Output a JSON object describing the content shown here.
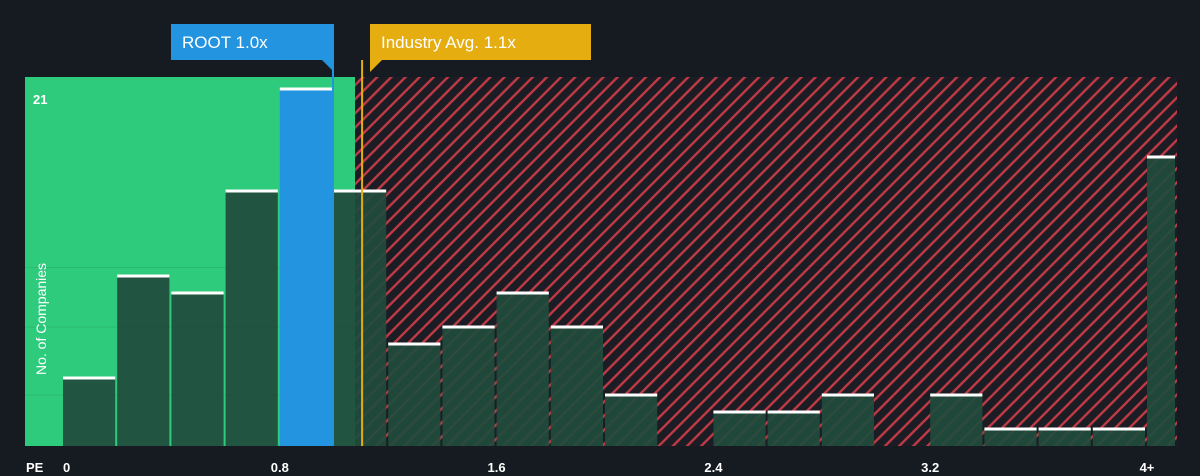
{
  "chart_data": {
    "type": "bar",
    "xlabel": "PE",
    "ylabel": "No. of Companies",
    "x_ticks": [
      "0",
      "0.8",
      "1.6",
      "2.4",
      "3.2",
      "4+"
    ],
    "y_ticks": [
      "21"
    ],
    "bin_width": 0.2,
    "bins": [
      0,
      0.2,
      0.4,
      0.6,
      0.8,
      1.0,
      1.2,
      1.4,
      1.6,
      1.8,
      2.0,
      2.2,
      2.4,
      2.6,
      2.8,
      3.0,
      3.2,
      3.4,
      3.6,
      3.8,
      4.0
    ],
    "values": [
      4,
      10,
      9,
      15,
      21,
      15,
      6,
      7,
      9,
      7,
      3,
      0,
      2,
      2,
      3,
      0,
      3,
      1,
      1,
      1,
      17
    ],
    "highlight_bin": 0.8,
    "ylim": [
      0,
      21
    ],
    "fair_zone_max": 1.1,
    "markers": [
      {
        "label": "ROOT 1.0x",
        "value": 1.0,
        "color": "#2394e0"
      },
      {
        "label": "Industry Avg. 1.1x",
        "value": 1.1,
        "color": "#e6ad11"
      }
    ],
    "colors": {
      "background": "#161b22",
      "fair_zone": "#2ecb7d",
      "over_zone": "#c03a46",
      "bar": "#204b3c",
      "highlight": "#2394e0",
      "cap": "#ffffff"
    }
  }
}
